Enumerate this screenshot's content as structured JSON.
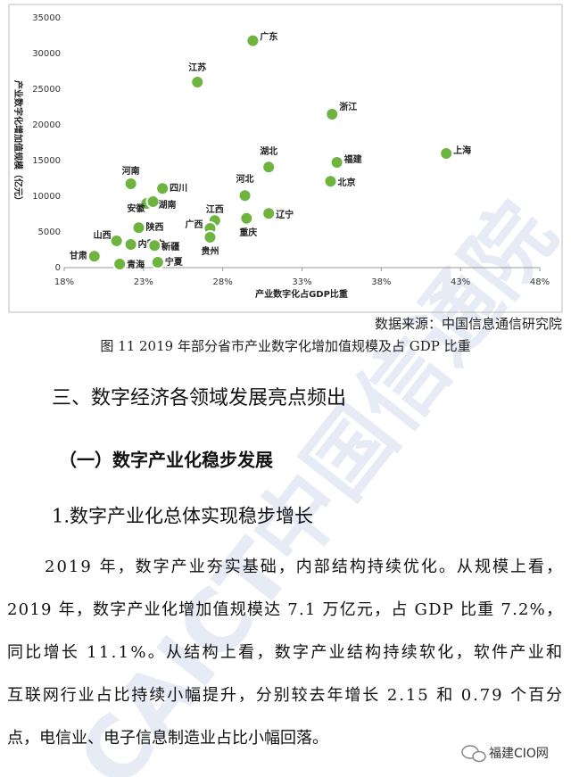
{
  "chart_data": {
    "type": "scatter",
    "xlabel": "产业数字化占GDP比重",
    "ylabel": "产业数字化增加值规模（亿元）",
    "labels": [
      "广东",
      "江苏",
      "浙江",
      "上海",
      "湖北",
      "福建",
      "北京",
      "河南",
      "四川",
      "河北",
      "安徽",
      "湖南",
      "江西",
      "广西",
      "辽宁",
      "重庆",
      "陕西",
      "贵州",
      "山西",
      "内蒙古",
      "新疆",
      "甘肃",
      "青海",
      "宁夏"
    ],
    "x": [
      29.9,
      26.4,
      34.9,
      42.1,
      30.9,
      35.2,
      34.8,
      22.2,
      24.2,
      29.4,
      23.2,
      23.6,
      27.5,
      27.2,
      30.9,
      29.5,
      22.7,
      27.2,
      21.3,
      22.2,
      23.7,
      19.9,
      21.5,
      23.9
    ],
    "values": [
      31800,
      26000,
      21500,
      16000,
      14100,
      14750,
      12100,
      11750,
      11100,
      10100,
      9000,
      9250,
      6600,
      5500,
      7600,
      6900,
      5600,
      4250,
      3750,
      3250,
      3100,
      1600,
      500,
      750
    ],
    "color": "#6fb43f",
    "xlim": [
      18,
      48
    ],
    "xticks": [
      {
        "value": 18,
        "label": "18%"
      },
      {
        "value": 23,
        "label": "23%"
      },
      {
        "value": 28,
        "label": "28%"
      },
      {
        "value": 33,
        "label": "33%"
      },
      {
        "value": 38,
        "label": "38%"
      },
      {
        "value": 43,
        "label": "43%"
      },
      {
        "value": 48,
        "label": "48%"
      }
    ],
    "ylim": [
      0,
      35000
    ],
    "yticks": [
      0,
      5000,
      10000,
      15000,
      20000,
      25000,
      30000,
      35000
    ],
    "grid": false
  },
  "source": "数据来源：中国信息通信研究院",
  "caption": "图 11 2019 年部分省市产业数字化增加值规模及占 GDP 比重",
  "headings": [
    "三、数字经济各领域发展亮点频出",
    "（一）数字产业化稳步发展",
    "1.数字产业化总体实现稳步增长"
  ],
  "paragraph": [
    "2019 年，数字产业夯实基础，内部结构持续优化。从规模上看，",
    "2019 年，数字产业化增加值规模达 7.1 万亿元，占 GDP 比重 7.2%，",
    "同比增长 11.1%。从结构上看，数字产业结构持续软化，软件产业和",
    "互联网行业占比持续小幅提升，分别较去年增长 2.15 和 0.79 个百分",
    "点，电信业、电子信息制造业占比小幅回落。"
  ],
  "watermark": "CAICT中国信通院",
  "brand": "福建CIO网"
}
